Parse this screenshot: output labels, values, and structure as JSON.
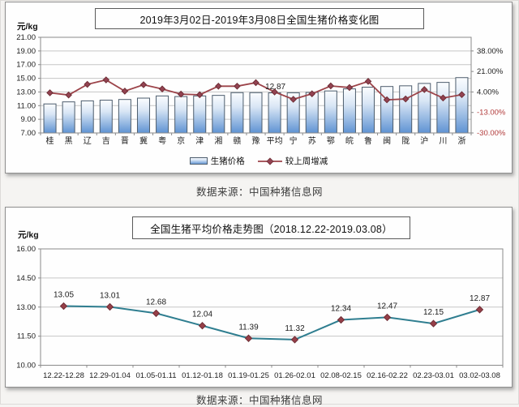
{
  "source_notes": {
    "top": "数据来源：中国种猪信息网",
    "bottom": "数据来源：中国种猪信息网"
  },
  "chart_data": [
    {
      "type": "bar",
      "title": "2019年3月02日-2019年3月08日全国生猪价格变化图",
      "unit_label": "元/kg",
      "categories": [
        "桂",
        "黑",
        "辽",
        "吉",
        "晋",
        "冀",
        "粤",
        "京",
        "津",
        "湘",
        "赣",
        "豫",
        "平均",
        "宁",
        "苏",
        "鄂",
        "皖",
        "鲁",
        "闽",
        "陇",
        "沪",
        "川",
        "浙"
      ],
      "series": [
        {
          "name": "生猪价格",
          "type": "bar",
          "values": [
            11.25,
            11.55,
            11.7,
            11.8,
            11.9,
            12.1,
            12.42,
            12.33,
            12.42,
            12.5,
            12.9,
            12.9,
            12.87,
            12.88,
            12.93,
            13.15,
            13.45,
            13.7,
            13.8,
            13.9,
            14.25,
            14.4,
            15.1
          ]
        },
        {
          "name": "较上周增减",
          "type": "line",
          "axis": "right",
          "values": [
            3.3,
            1.5,
            10.3,
            14.0,
            4.7,
            10.0,
            6.5,
            2.2,
            1.7,
            8.8,
            8.8,
            11.7,
            4.0,
            -2.1,
            2.5,
            9.0,
            7.7,
            12.8,
            -2.5,
            -1.8,
            6.0,
            -1.0,
            1.8
          ]
        }
      ],
      "left_axis": {
        "min": 7,
        "max": 21,
        "step": 2,
        "tick_labels": [
          "21.00",
          "19.00",
          "17.00",
          "15.00",
          "13.00",
          "11.00",
          "9.00",
          "7.00"
        ]
      },
      "right_axis": {
        "min": -30,
        "step": 17,
        "tick_labels": [
          "38.00%",
          "21.00%",
          "4.00%",
          "-13.00%",
          "-30.00%"
        ]
      },
      "annotation": {
        "text": "12.87",
        "category": "平均"
      },
      "legend": [
        "生猪价格",
        "较上周增减"
      ],
      "grid": true,
      "colors": {
        "bar_gradient_top": "#fbfdff",
        "bar_gradient_bottom": "#5f93d3",
        "bar_border": "#4d5d6d",
        "line": "#9c4349",
        "marker": "#934352",
        "negative_label": "#b23b3b"
      }
    },
    {
      "type": "line",
      "title": "全国生猪平均价格走势图（2018.12.22-2019.03.08）",
      "unit_label": "元/kg",
      "categories": [
        "12.22-12.28",
        "12.29-01.04",
        "01.05-01.11",
        "01.12-01.18",
        "01.19-01.25",
        "01.26-02.01",
        "02.08-02.15",
        "02.16-02.22",
        "02.23-03.01",
        "03.02-03.08"
      ],
      "values": [
        13.05,
        13.01,
        12.68,
        12.04,
        11.39,
        11.32,
        12.34,
        12.47,
        12.15,
        12.87
      ],
      "data_labels": [
        "13.05",
        "13.01",
        "12.68",
        "12.04",
        "11.39",
        "11.32",
        "12.34",
        "12.47",
        "12.15",
        "12.87"
      ],
      "y_axis": {
        "min": 10,
        "max": 16,
        "step": 1.5,
        "tick_labels": [
          "16.00",
          "14.50",
          "13.00",
          "11.50",
          "10.00"
        ]
      },
      "grid": true,
      "colors": {
        "line": "#2f7e90",
        "marker": "#963f48"
      }
    }
  ]
}
